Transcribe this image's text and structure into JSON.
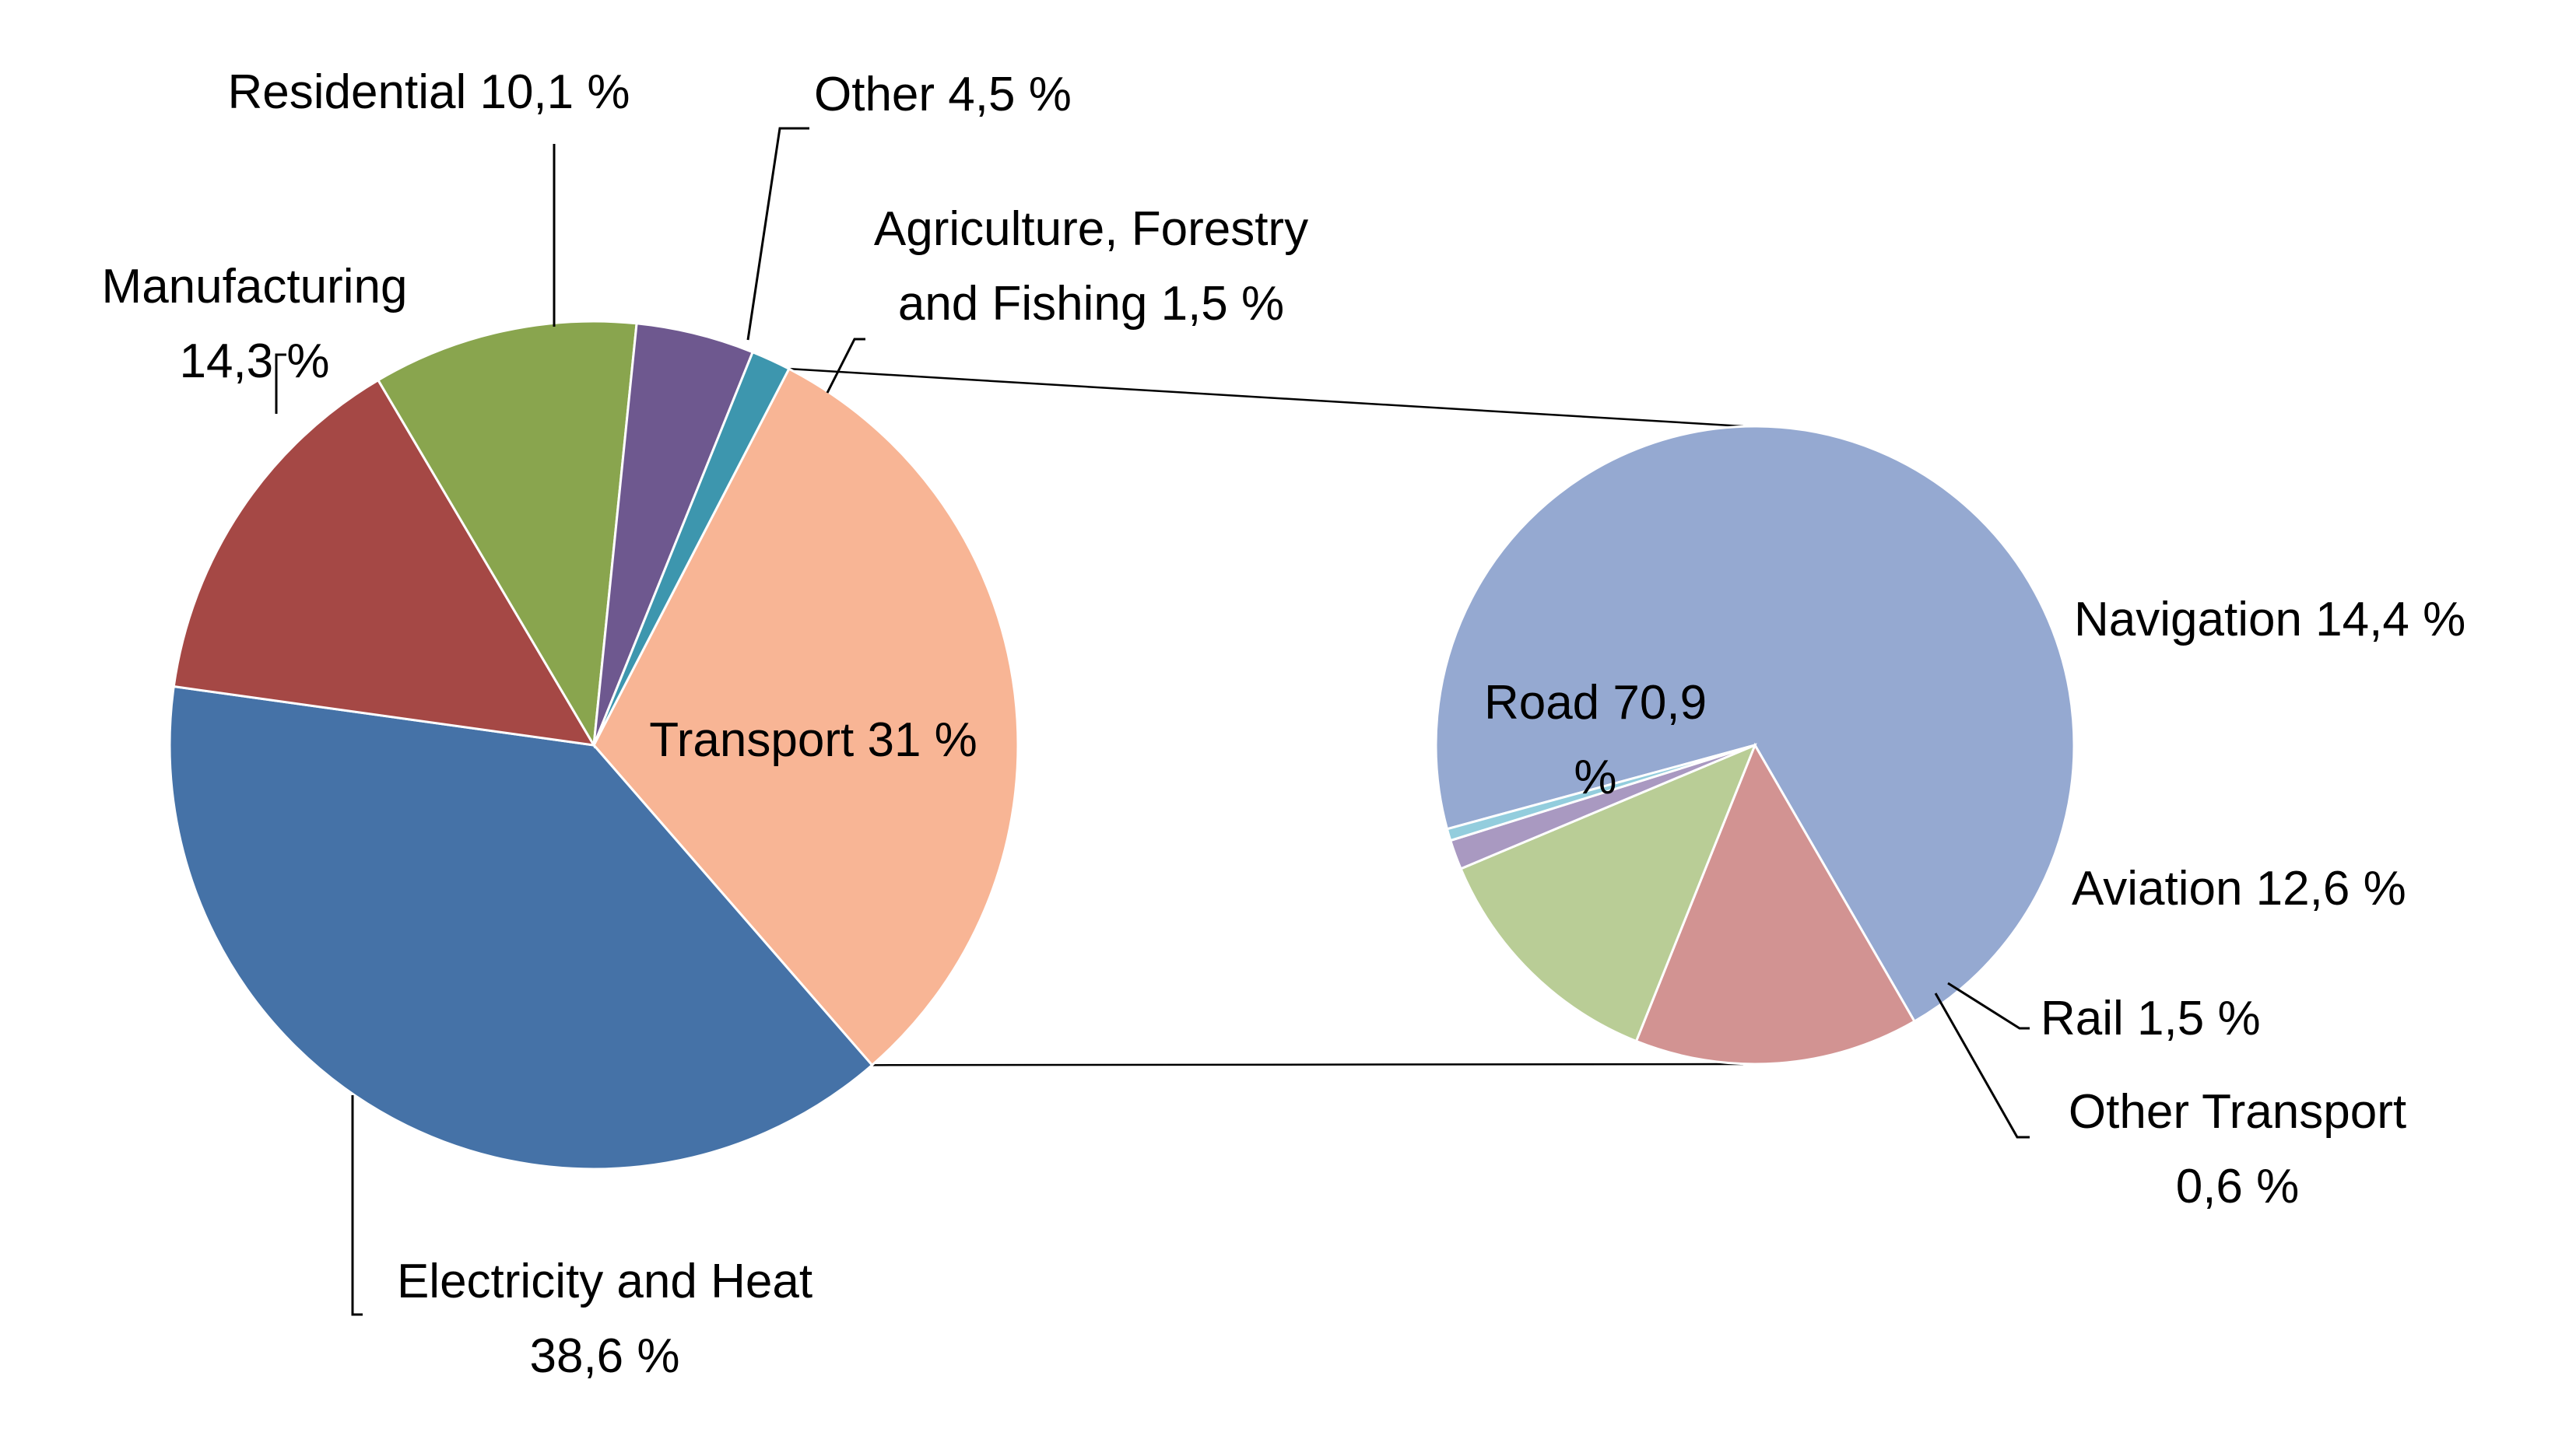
{
  "chart_data": {
    "type": "pie",
    "subtype": "pie-of-pie",
    "main_pie": {
      "categories": [
        "Transport",
        "Electricity and Heat",
        "Manufacturing",
        "Residential",
        "Other",
        "Agriculture, Forestry and Fishing"
      ],
      "values": [
        31.0,
        38.6,
        14.3,
        10.1,
        4.5,
        1.5
      ],
      "colors": [
        "#F8B595",
        "#4572A7",
        "#A54845",
        "#89A54E",
        "#6E588F",
        "#3D96AE"
      ],
      "labels": [
        [
          "Transport 31 %"
        ],
        [
          "Electricity and Heat",
          "38,6 %"
        ],
        [
          "Manufacturing",
          "14,3 %"
        ],
        [
          "Residential 10,1 %"
        ],
        [
          "Other 4,5 %"
        ],
        [
          "Agriculture, Forestry",
          "and Fishing 1,5 %"
        ]
      ]
    },
    "secondary_pie": {
      "parent": "Transport",
      "categories": [
        "Road",
        "Navigation",
        "Aviation",
        "Rail",
        "Other Transport"
      ],
      "values": [
        70.9,
        14.4,
        12.6,
        1.5,
        0.6
      ],
      "colors": [
        "#95A9D1",
        "#D29392",
        "#B9CD96",
        "#A999C1",
        "#93CDDD"
      ],
      "labels": [
        [
          "Road 70,9",
          "%"
        ],
        [
          "Navigation 14,4 %"
        ],
        [
          "Aviation 12,6 %"
        ],
        [
          "Rail 1,5 %"
        ],
        [
          "Other Transport",
          "0,6 %"
        ]
      ]
    },
    "legend": "none"
  }
}
